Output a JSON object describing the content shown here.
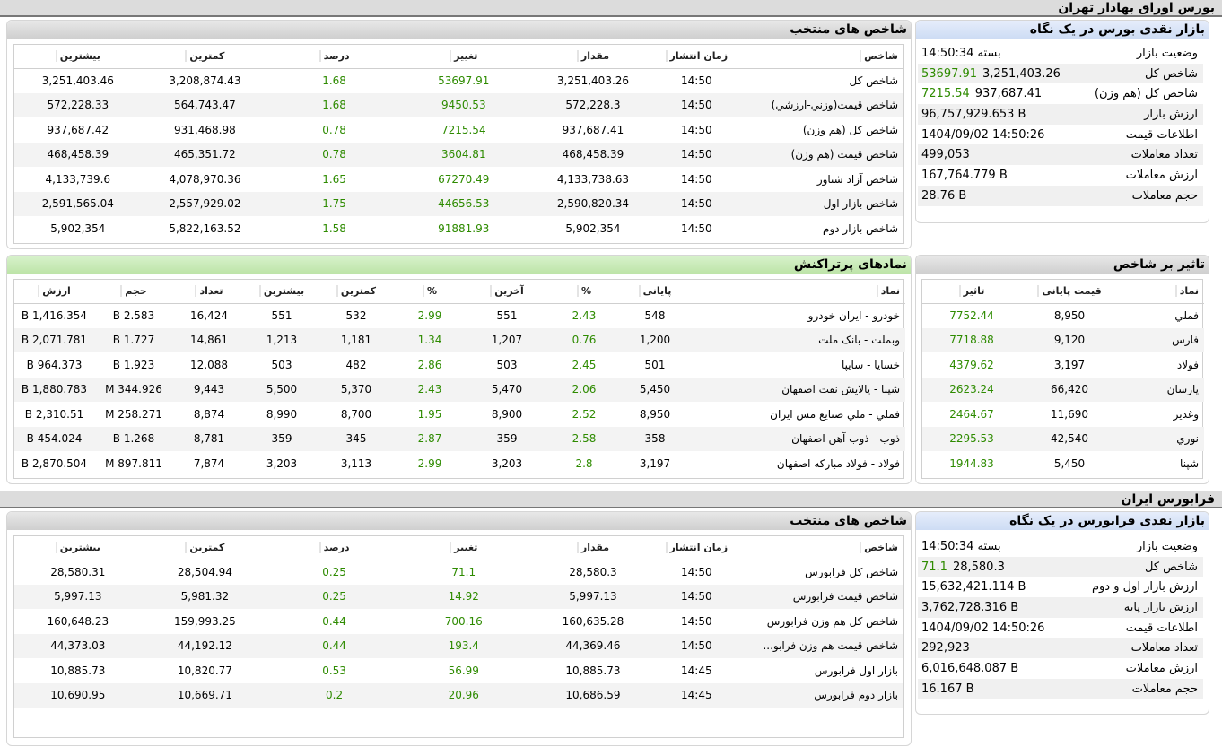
{
  "tehran": {
    "section_title": "بورس اوراق بهادار تهران",
    "glance": {
      "title": "بازار نقدی بورس در یک نگاه",
      "rows": [
        {
          "label": "وضعیت بازار",
          "value": "بسته 14:50:34",
          "change": ""
        },
        {
          "label": "شاخص کل",
          "value": "3,251,403.26",
          "change": "53697.91"
        },
        {
          "label": "شاخص کل (هم وزن)",
          "value": "937,687.41",
          "change": "7215.54"
        },
        {
          "label": "ارزش بازار",
          "value": "96,757,929.653 B",
          "change": ""
        },
        {
          "label": "اطلاعات قیمت",
          "value": "1404/09/02 14:50:26",
          "change": ""
        },
        {
          "label": "تعداد معاملات",
          "value": "499,053",
          "change": ""
        },
        {
          "label": "ارزش معاملات",
          "value": "167,764.779 B",
          "change": ""
        },
        {
          "label": "حجم معاملات",
          "value": "28.76 B",
          "change": ""
        }
      ]
    },
    "indices": {
      "title": "شاخص های منتخب",
      "headers": [
        "شاخص",
        "زمان انتشار",
        "مقدار",
        "تغییر",
        "درصد",
        "کمترین",
        "بیشترین"
      ],
      "rows": [
        [
          "شاخص کل",
          "14:50",
          "3,251,403.26",
          "53697.91",
          "1.68",
          "3,208,874.43",
          "3,251,403.46"
        ],
        [
          "شاخص قیمت(وزني-ارزشي)",
          "14:50",
          "572,228.3",
          "9450.53",
          "1.68",
          "564,743.47",
          "572,228.33"
        ],
        [
          "شاخص کل (هم وزن)",
          "14:50",
          "937,687.41",
          "7215.54",
          "0.78",
          "931,468.98",
          "937,687.42"
        ],
        [
          "شاخص قیمت (هم وزن)",
          "14:50",
          "468,458.39",
          "3604.81",
          "0.78",
          "465,351.72",
          "468,458.39"
        ],
        [
          "شاخص آزاد شناور",
          "14:50",
          "4,133,738.63",
          "67270.49",
          "1.65",
          "4,078,970.36",
          "4,133,739.6"
        ],
        [
          "شاخص بازار اول",
          "14:50",
          "2,590,820.34",
          "44656.53",
          "1.75",
          "2,557,929.02",
          "2,591,565.04"
        ],
        [
          "شاخص بازار دوم",
          "14:50",
          "5,902,354",
          "91881.93",
          "1.58",
          "5,822,163.52",
          "5,902,354"
        ]
      ]
    },
    "impact": {
      "title": "تاثیر بر شاخص",
      "headers": [
        "نماد",
        "قیمت پایانی",
        "تاثیر"
      ],
      "rows": [
        [
          "فملي",
          "8,950",
          "7752.44"
        ],
        [
          "فارس",
          "9,120",
          "7718.88"
        ],
        [
          "فولاد",
          "3,197",
          "4379.62"
        ],
        [
          "پارسان",
          "66,420",
          "2623.24"
        ],
        [
          "وغدير",
          "11,690",
          "2464.67"
        ],
        [
          "نوري",
          "42,540",
          "2295.53"
        ],
        [
          "شپنا",
          "5,450",
          "1944.83"
        ]
      ]
    },
    "active": {
      "title": "نمادهای پرتراکنش",
      "headers": [
        "نماد",
        "پایانی",
        "%",
        "آخرین",
        "%",
        "کمترین",
        "بیشترین",
        "تعداد",
        "حجم",
        "ارزش"
      ],
      "rows": [
        [
          "خودرو - ایران خودرو",
          "548",
          "2.43",
          "551",
          "2.99",
          "532",
          "551",
          "16,424",
          "2.583 B",
          "1,416.354 B"
        ],
        [
          "وبملت - بانک ملت",
          "1,200",
          "0.76",
          "1,207",
          "1.34",
          "1,181",
          "1,213",
          "14,861",
          "1.727 B",
          "2,071.781 B"
        ],
        [
          "خسایا - سایپا",
          "501",
          "2.45",
          "503",
          "2.86",
          "482",
          "503",
          "12,088",
          "1.923 B",
          "964.373 B"
        ],
        [
          "شپنا - پالایش نفت اصفهان",
          "5,450",
          "2.06",
          "5,470",
          "2.43",
          "5,370",
          "5,500",
          "9,443",
          "344.926 M",
          "1,880.783 B"
        ],
        [
          "فملي - ملي صنایع مس ایران",
          "8,950",
          "2.52",
          "8,900",
          "1.95",
          "8,700",
          "8,990",
          "8,874",
          "258.271 M",
          "2,310.51 B"
        ],
        [
          "ذوب - ذوب آهن اصفهان",
          "358",
          "2.58",
          "359",
          "2.87",
          "345",
          "359",
          "8,781",
          "1.268 B",
          "454.024 B"
        ],
        [
          "فولاد - فولاد مبارکه اصفهان",
          "3,197",
          "2.8",
          "3,203",
          "2.99",
          "3,113",
          "3,203",
          "7,874",
          "897.811 M",
          "2,870.504 B"
        ]
      ]
    }
  },
  "farabourse": {
    "section_title": "فرابورس ایران",
    "glance": {
      "title": "بازار نقدی فرابورس در یک نگاه",
      "rows": [
        {
          "label": "وضعیت بازار",
          "value": "بسته 14:50:34",
          "change": ""
        },
        {
          "label": "شاخص کل",
          "value": "28,580.3",
          "change": "71.1"
        },
        {
          "label": "ارزش بازار اول و دوم",
          "value": "15,632,421.114 B",
          "change": ""
        },
        {
          "label": "ارزش بازار پایه",
          "value": "3,762,728.316 B",
          "change": ""
        },
        {
          "label": "اطلاعات قیمت",
          "value": "1404/09/02 14:50:26",
          "change": ""
        },
        {
          "label": "تعداد معاملات",
          "value": "292,923",
          "change": ""
        },
        {
          "label": "ارزش معاملات",
          "value": "6,016,648.087 B",
          "change": ""
        },
        {
          "label": "حجم معاملات",
          "value": "16.167 B",
          "change": ""
        }
      ]
    },
    "indices": {
      "title": "شاخص های منتخب",
      "headers": [
        "شاخص",
        "زمان انتشار",
        "مقدار",
        "تغییر",
        "درصد",
        "کمترین",
        "بیشترین"
      ],
      "rows": [
        [
          "شاخص کل فرابورس",
          "14:50",
          "28,580.3",
          "71.1",
          "0.25",
          "28,504.94",
          "28,580.31"
        ],
        [
          "شاخص قیمت فرابورس",
          "14:50",
          "5,997.13",
          "14.92",
          "0.25",
          "5,981.32",
          "5,997.13"
        ],
        [
          "شاخص کل هم وزن فرابورس",
          "14:50",
          "160,635.28",
          "700.16",
          "0.44",
          "159,993.25",
          "160,648.23"
        ],
        [
          "شاخص قیمت هم وزن فرابو...",
          "14:50",
          "44,369.46",
          "193.4",
          "0.44",
          "44,192.12",
          "44,373.03"
        ],
        [
          "بازار اول فرابورس",
          "14:45",
          "10,885.73",
          "56.99",
          "0.53",
          "10,820.77",
          "10,885.73"
        ],
        [
          "بازار دوم فرابورس",
          "14:45",
          "10,686.59",
          "20.96",
          "0.2",
          "10,669.71",
          "10,690.95"
        ]
      ]
    }
  },
  "colors": {
    "positive": "#2e8b00",
    "row_alt": "#f3f3f3",
    "head_blue": "#cddcf4",
    "head_green": "#bde4a8"
  }
}
